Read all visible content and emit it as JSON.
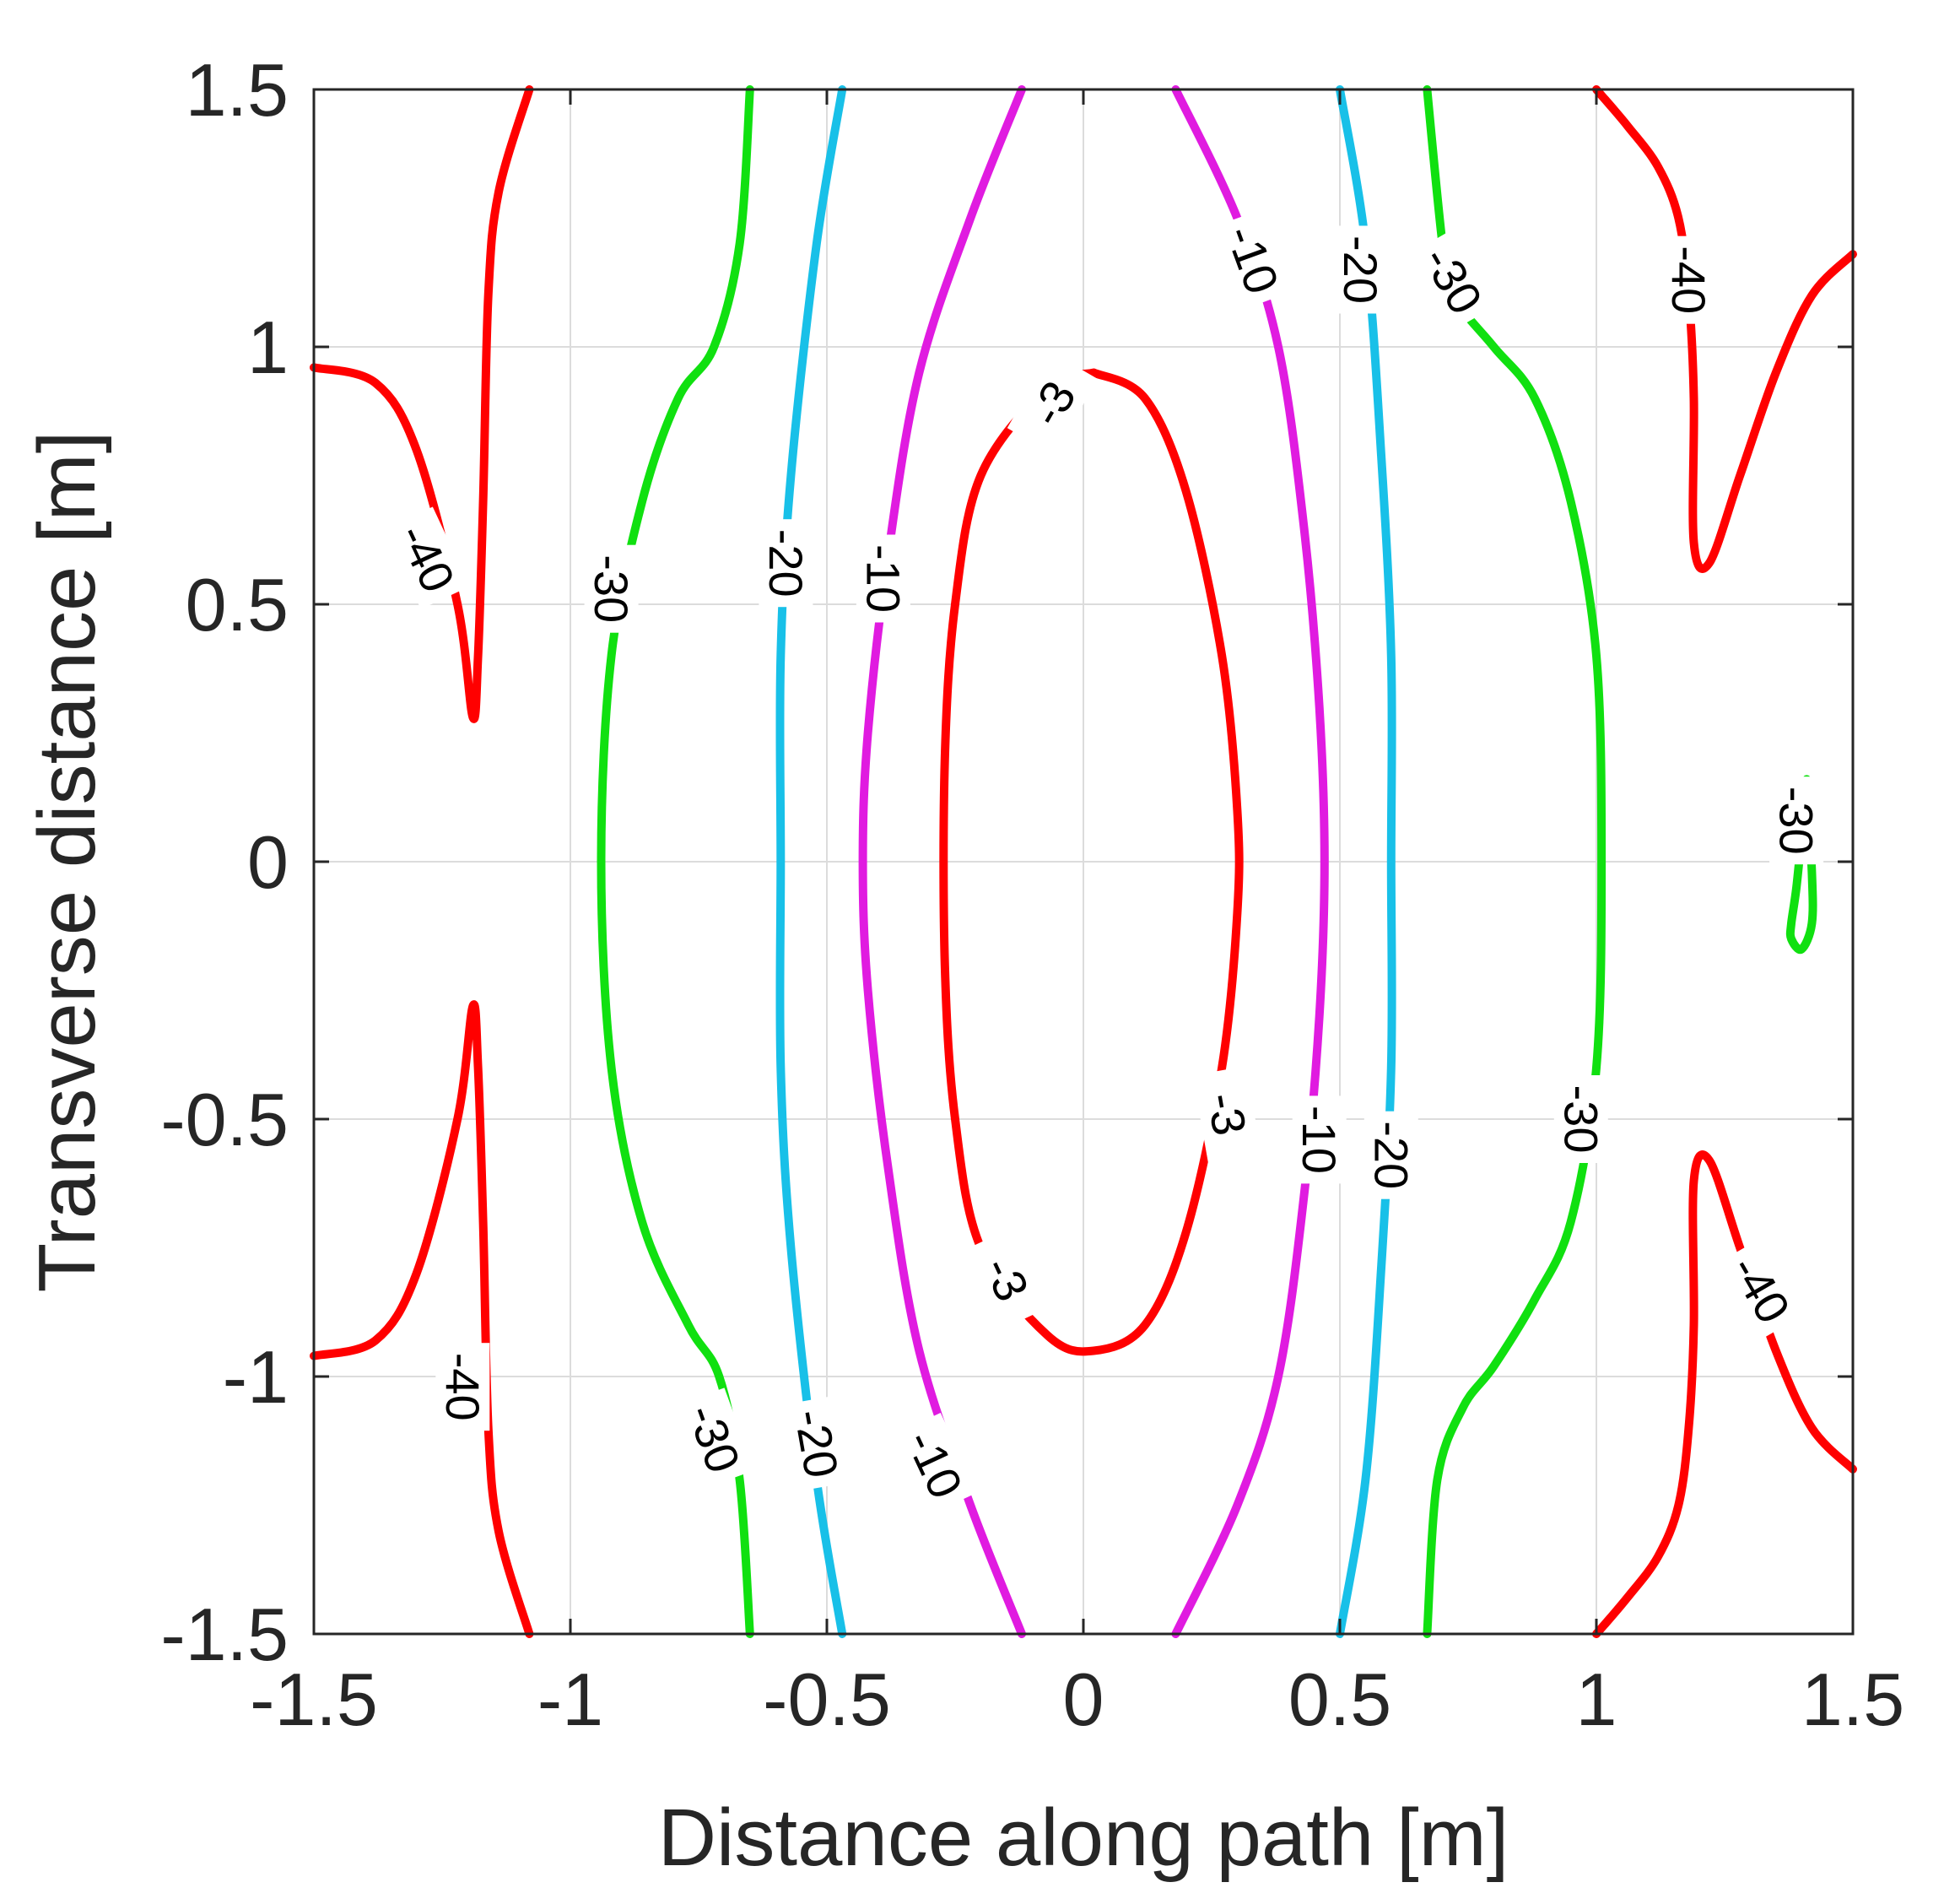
{
  "chart_data": {
    "type": "contour",
    "title": "",
    "xlabel": "Distance along path [m]",
    "ylabel": "Transverse distance [m]",
    "xlim": [
      -1.5,
      1.5
    ],
    "ylim": [
      -1.5,
      1.5
    ],
    "xticks": [
      -1.5,
      -1,
      -0.5,
      0,
      0.5,
      1,
      1.5
    ],
    "yticks": [
      -1.5,
      -1,
      -0.5,
      0,
      0.5,
      1,
      1.5
    ],
    "xtick_labels": [
      "-1.5",
      "-1",
      "-0.5",
      "0",
      "0.5",
      "1",
      "1.5"
    ],
    "ytick_labels": [
      "-1.5",
      "-1",
      "-0.5",
      "0",
      "0.5",
      "1",
      "1.5"
    ],
    "grid": true,
    "levels": [
      {
        "level": -3,
        "color": "#ff0000"
      },
      {
        "level": -10,
        "color": "#e01be0"
      },
      {
        "level": -20,
        "color": "#18c0e8"
      },
      {
        "level": -30,
        "color": "#10e010"
      },
      {
        "level": -40,
        "color": "#ff0000"
      }
    ],
    "contours": [
      {
        "level": -3,
        "color": "#ff0000",
        "points": [
          [
            0.02,
            0.95
          ],
          [
            0.12,
            0.9
          ],
          [
            0.2,
            0.72
          ],
          [
            0.27,
            0.4
          ],
          [
            0.3,
            0.1
          ],
          [
            0.3,
            -0.1
          ],
          [
            0.27,
            -0.4
          ],
          [
            0.2,
            -0.72
          ],
          [
            0.12,
            -0.9
          ],
          [
            0.02,
            -0.95
          ],
          [
            -0.07,
            -0.92
          ],
          [
            -0.2,
            -0.75
          ],
          [
            -0.25,
            -0.5
          ],
          [
            -0.27,
            -0.2
          ],
          [
            -0.27,
            0.2
          ],
          [
            -0.25,
            0.5
          ],
          [
            -0.2,
            0.75
          ],
          [
            -0.07,
            0.92
          ],
          [
            0.02,
            0.95
          ]
        ]
      },
      {
        "level": -10,
        "color": "#e01be0",
        "points": [
          [
            0.18,
            1.5
          ],
          [
            0.3,
            1.25
          ],
          [
            0.38,
            1.0
          ],
          [
            0.43,
            0.65
          ],
          [
            0.46,
            0.3
          ],
          [
            0.47,
            0
          ],
          [
            0.46,
            -0.3
          ],
          [
            0.43,
            -0.65
          ],
          [
            0.38,
            -1.0
          ],
          [
            0.3,
            -1.25
          ],
          [
            0.18,
            -1.5
          ]
        ]
      },
      {
        "level": -10,
        "color": "#e01be0",
        "points": [
          [
            -0.12,
            1.5
          ],
          [
            -0.22,
            1.25
          ],
          [
            -0.32,
            0.95
          ],
          [
            -0.38,
            0.6
          ],
          [
            -0.42,
            0.25
          ],
          [
            -0.43,
            0
          ],
          [
            -0.42,
            -0.25
          ],
          [
            -0.38,
            -0.6
          ],
          [
            -0.32,
            -0.95
          ],
          [
            -0.22,
            -1.25
          ],
          [
            -0.12,
            -1.5
          ]
        ]
      },
      {
        "level": -20,
        "color": "#18c0e8",
        "points": [
          [
            0.5,
            1.5
          ],
          [
            0.55,
            1.2
          ],
          [
            0.58,
            0.8
          ],
          [
            0.6,
            0.4
          ],
          [
            0.6,
            0
          ],
          [
            0.6,
            -0.4
          ],
          [
            0.58,
            -0.8
          ],
          [
            0.55,
            -1.2
          ],
          [
            0.5,
            -1.5
          ]
        ]
      },
      {
        "level": -20,
        "color": "#18c0e8",
        "points": [
          [
            -0.47,
            1.5
          ],
          [
            -0.52,
            1.2
          ],
          [
            -0.57,
            0.75
          ],
          [
            -0.59,
            0.4
          ],
          [
            -0.59,
            0
          ],
          [
            -0.59,
            -0.4
          ],
          [
            -0.57,
            -0.75
          ],
          [
            -0.52,
            -1.2
          ],
          [
            -0.47,
            -1.5
          ]
        ]
      },
      {
        "level": -30,
        "color": "#10e010",
        "points": [
          [
            0.67,
            1.5
          ],
          [
            0.7,
            1.2
          ],
          [
            0.72,
            1.1
          ],
          [
            0.8,
            1.0
          ],
          [
            0.88,
            0.9
          ],
          [
            0.95,
            0.7
          ],
          [
            1.0,
            0.4
          ],
          [
            1.01,
            0
          ],
          [
            1.0,
            -0.4
          ],
          [
            0.95,
            -0.7
          ],
          [
            0.88,
            -0.85
          ],
          [
            0.8,
            -0.98
          ],
          [
            0.74,
            -1.06
          ],
          [
            0.69,
            -1.2
          ],
          [
            0.67,
            -1.5
          ]
        ]
      },
      {
        "level": -30,
        "color": "#10e010",
        "points": [
          [
            -0.65,
            1.5
          ],
          [
            -0.67,
            1.2
          ],
          [
            -0.72,
            1.0
          ],
          [
            -0.79,
            0.9
          ],
          [
            -0.86,
            0.7
          ],
          [
            -0.92,
            0.4
          ],
          [
            -0.94,
            0
          ],
          [
            -0.92,
            -0.4
          ],
          [
            -0.86,
            -0.7
          ],
          [
            -0.77,
            -0.9
          ],
          [
            -0.71,
            -1.0
          ],
          [
            -0.67,
            -1.2
          ],
          [
            -0.65,
            -1.5
          ]
        ]
      },
      {
        "level": -30,
        "color": "#10e010",
        "points": [
          [
            1.41,
            0.16
          ],
          [
            1.4,
            0.05
          ],
          [
            1.39,
            -0.05
          ],
          [
            1.38,
            -0.12
          ],
          [
            1.38,
            -0.15
          ],
          [
            1.4,
            -0.17
          ],
          [
            1.42,
            -0.12
          ],
          [
            1.42,
            -0.02
          ],
          [
            1.41,
            0.16
          ]
        ]
      },
      {
        "level": -40,
        "color": "#ff0000",
        "points": [
          [
            -1.08,
            1.5
          ],
          [
            -1.14,
            1.3
          ],
          [
            -1.16,
            1.1
          ],
          [
            -1.17,
            0.7
          ],
          [
            -1.18,
            0.4
          ],
          [
            -1.19,
            0.28
          ],
          [
            -1.22,
            0.5
          ],
          [
            -1.3,
            0.8
          ],
          [
            -1.38,
            0.93
          ],
          [
            -1.5,
            0.96
          ]
        ]
      },
      {
        "level": -40,
        "color": "#ff0000",
        "points": [
          [
            -1.08,
            -1.5
          ],
          [
            -1.14,
            -1.3
          ],
          [
            -1.16,
            -1.1
          ],
          [
            -1.17,
            -0.7
          ],
          [
            -1.18,
            -0.4
          ],
          [
            -1.19,
            -0.28
          ],
          [
            -1.22,
            -0.5
          ],
          [
            -1.3,
            -0.8
          ],
          [
            -1.38,
            -0.93
          ],
          [
            -1.5,
            -0.96
          ]
        ]
      },
      {
        "level": -40,
        "color": "#ff0000",
        "points": [
          [
            1.0,
            1.5
          ],
          [
            1.06,
            1.43
          ],
          [
            1.12,
            1.35
          ],
          [
            1.16,
            1.25
          ],
          [
            1.18,
            1.1
          ],
          [
            1.19,
            0.9
          ],
          [
            1.19,
            0.62
          ],
          [
            1.22,
            0.58
          ],
          [
            1.28,
            0.75
          ],
          [
            1.35,
            0.95
          ],
          [
            1.42,
            1.1
          ],
          [
            1.5,
            1.18
          ]
        ]
      },
      {
        "level": -40,
        "color": "#ff0000",
        "points": [
          [
            1.0,
            -1.5
          ],
          [
            1.06,
            -1.43
          ],
          [
            1.12,
            -1.35
          ],
          [
            1.16,
            -1.25
          ],
          [
            1.18,
            -1.1
          ],
          [
            1.19,
            -0.9
          ],
          [
            1.19,
            -0.62
          ],
          [
            1.22,
            -0.58
          ],
          [
            1.28,
            -0.75
          ],
          [
            1.35,
            -0.95
          ],
          [
            1.42,
            -1.1
          ],
          [
            1.5,
            -1.18
          ]
        ]
      }
    ],
    "contour_labels": [
      {
        "text": "-3",
        "x": -0.06,
        "y": 0.89,
        "rotation": -60
      },
      {
        "text": "-3",
        "x": 0.28,
        "y": -0.49,
        "rotation": 80
      },
      {
        "text": "-3",
        "x": -0.15,
        "y": -0.81,
        "rotation": 65
      },
      {
        "text": "-10",
        "x": 0.33,
        "y": 1.17,
        "rotation": 70
      },
      {
        "text": "-10",
        "x": -0.39,
        "y": 0.55,
        "rotation": 90
      },
      {
        "text": "-10",
        "x": 0.46,
        "y": -0.54,
        "rotation": 90
      },
      {
        "text": "-10",
        "x": -0.29,
        "y": -1.17,
        "rotation": 65
      },
      {
        "text": "-20",
        "x": 0.54,
        "y": 1.15,
        "rotation": 90
      },
      {
        "text": "-20",
        "x": -0.58,
        "y": 0.58,
        "rotation": 90
      },
      {
        "text": "-20",
        "x": 0.6,
        "y": -0.57,
        "rotation": 90
      },
      {
        "text": "-20",
        "x": -0.52,
        "y": -1.13,
        "rotation": 80
      },
      {
        "text": "-30",
        "x": 0.72,
        "y": 1.13,
        "rotation": 60
      },
      {
        "text": "-30",
        "x": -0.92,
        "y": 0.53,
        "rotation": 90
      },
      {
        "text": "-30",
        "x": 0.97,
        "y": -0.5,
        "rotation": 90
      },
      {
        "text": "-30",
        "x": 1.39,
        "y": 0.08,
        "rotation": 90
      },
      {
        "text": "-30",
        "x": -0.72,
        "y": -1.12,
        "rotation": 70
      },
      {
        "text": "-40",
        "x": -1.28,
        "y": 0.59,
        "rotation": 65
      },
      {
        "text": "-40",
        "x": 1.18,
        "y": 1.13,
        "rotation": 90
      },
      {
        "text": "-40",
        "x": -1.21,
        "y": -1.02,
        "rotation": 90
      },
      {
        "text": "-40",
        "x": 1.32,
        "y": -0.83,
        "rotation": 60
      }
    ]
  }
}
